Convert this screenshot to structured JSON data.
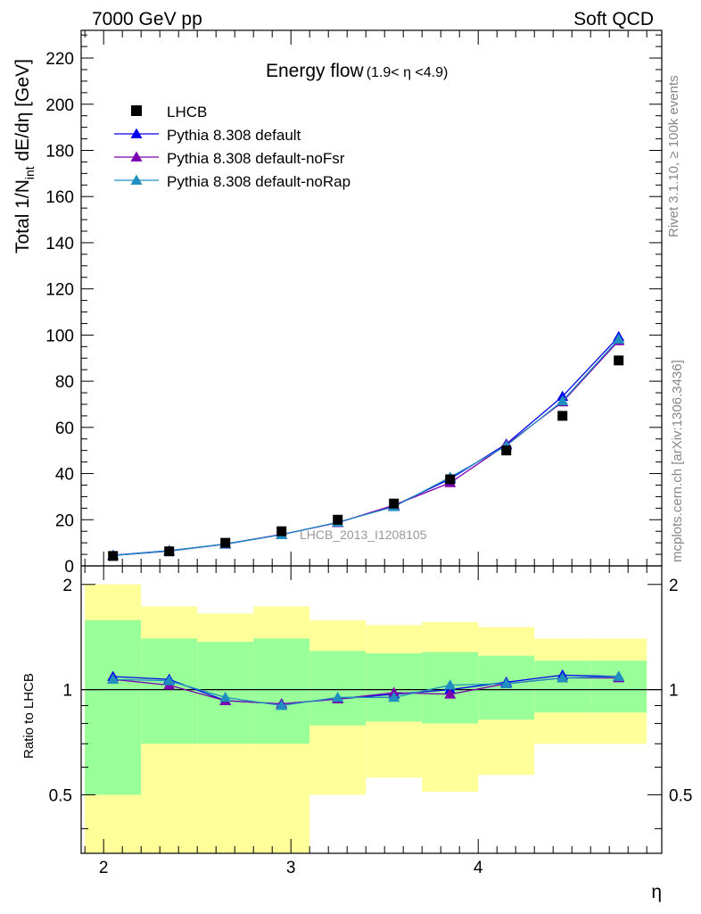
{
  "header": {
    "left": "7000 GeV pp",
    "right": "Soft QCD"
  },
  "side_labels": {
    "rivet": "Rivet 3.1.10, ≥ 100k events",
    "mcplots": "mcplots.cern.ch [arXiv:1306.3436]"
  },
  "chart_data": [
    {
      "type": "scatter",
      "title": "Energy flow",
      "title_suffix": "(1.9< η <4.9)",
      "ylabel": "Total 1/N",
      "ylabel_sub": "int",
      "ylabel_rest": " dE/dη [GeV]",
      "watermark": "LHCB_2013_I1208105",
      "xlim": [
        1.88,
        4.98
      ],
      "ylim": [
        0,
        232
      ],
      "yticks": [
        0,
        20,
        40,
        60,
        80,
        100,
        120,
        140,
        160,
        180,
        200,
        220
      ],
      "ytick_labels": [
        "0",
        "20",
        "40",
        "60",
        "80",
        "100",
        "120",
        "140",
        "160",
        "180",
        "200",
        "220"
      ],
      "legend_position": "top-left",
      "data": {
        "name": "LHCB",
        "color": "#000000",
        "x": [
          2.05,
          2.35,
          2.65,
          2.95,
          3.25,
          3.55,
          3.85,
          4.15,
          4.45,
          4.75
        ],
        "y": [
          4.3,
          6.3,
          10.0,
          15.0,
          20.0,
          27.0,
          37.5,
          50.0,
          65.0,
          89.0
        ],
        "bins": [
          [
            1.9,
            2.2
          ],
          [
            2.2,
            2.5
          ],
          [
            2.5,
            2.8
          ],
          [
            2.8,
            3.1
          ],
          [
            3.1,
            3.4
          ],
          [
            3.4,
            3.7
          ],
          [
            3.7,
            4.0
          ],
          [
            4.0,
            4.3
          ],
          [
            4.3,
            4.6
          ],
          [
            4.6,
            4.9
          ]
        ]
      },
      "series": [
        {
          "name": "Pythia 8.308 default",
          "color": "#0000ee",
          "x": [
            2.05,
            2.35,
            2.65,
            2.95,
            3.25,
            3.55,
            3.85,
            4.15,
            4.45,
            4.75
          ],
          "y": [
            4.6,
            6.6,
            9.4,
            13.6,
            18.8,
            26.0,
            37.7,
            52.8,
            73.4,
            99.3
          ]
        },
        {
          "name": "Pythia 8.308 default-noFsr",
          "color": "#7a00b0",
          "x": [
            2.05,
            2.35,
            2.65,
            2.95,
            3.25,
            3.55,
            3.85,
            4.15,
            4.45,
            4.75
          ],
          "y": [
            4.5,
            6.4,
            9.5,
            13.6,
            18.7,
            26.3,
            36.0,
            52.5,
            71.0,
            97.5
          ]
        },
        {
          "name": "Pythia 8.308 default-noRap",
          "color": "#1f8fbf",
          "x": [
            2.05,
            2.35,
            2.65,
            2.95,
            3.25,
            3.55,
            3.85,
            4.15,
            4.45,
            4.75
          ],
          "y": [
            4.5,
            6.5,
            9.5,
            13.5,
            18.9,
            25.6,
            38.4,
            52.0,
            71.5,
            98.2
          ]
        }
      ]
    },
    {
      "type": "scatter",
      "ylabel": "Ratio to LHCB",
      "xlabel": "η",
      "xlim": [
        1.88,
        4.98
      ],
      "ylim": [
        0.34,
        2.26
      ],
      "y_scale": "log",
      "xticks": [
        2,
        3,
        4
      ],
      "xtick_labels": [
        "2",
        "3",
        "4"
      ],
      "yticks": [
        0.5,
        1,
        2
      ],
      "ytick_labels": [
        "0.5",
        "1",
        "2"
      ],
      "bands": {
        "inner_color": "#99ff99",
        "outer_color": "#ffff99",
        "bins": [
          [
            1.9,
            2.2
          ],
          [
            2.2,
            2.5
          ],
          [
            2.5,
            2.8
          ],
          [
            2.8,
            3.1
          ],
          [
            3.1,
            3.4
          ],
          [
            3.4,
            3.7
          ],
          [
            3.7,
            4.0
          ],
          [
            4.0,
            4.3
          ],
          [
            4.3,
            4.6
          ],
          [
            4.6,
            4.9
          ]
        ],
        "inner_low": [
          0.5,
          0.7,
          0.7,
          0.7,
          0.79,
          0.81,
          0.8,
          0.82,
          0.86,
          0.86
        ],
        "inner_high": [
          1.58,
          1.4,
          1.37,
          1.4,
          1.29,
          1.27,
          1.28,
          1.25,
          1.21,
          1.21
        ],
        "outer_low": [
          0.34,
          0.34,
          0.34,
          0.34,
          0.5,
          0.56,
          0.51,
          0.57,
          0.7,
          0.7
        ],
        "outer_high": [
          2.0,
          1.73,
          1.65,
          1.73,
          1.58,
          1.53,
          1.56,
          1.51,
          1.4,
          1.4
        ]
      },
      "series": [
        {
          "name": "Pythia 8.308 default",
          "color": "#0000ee",
          "x": [
            2.05,
            2.35,
            2.65,
            2.95,
            3.25,
            3.55,
            3.85,
            4.15,
            4.45,
            4.75
          ],
          "y": [
            1.09,
            1.07,
            0.93,
            0.91,
            0.94,
            0.97,
            1.0,
            1.05,
            1.1,
            1.09
          ]
        },
        {
          "name": "Pythia 8.308 default-noFsr",
          "color": "#7a00b0",
          "x": [
            2.05,
            2.35,
            2.65,
            2.95,
            3.25,
            3.55,
            3.85,
            4.15,
            4.45,
            4.75
          ],
          "y": [
            1.07,
            1.03,
            0.93,
            0.91,
            0.94,
            0.98,
            0.97,
            1.04,
            1.08,
            1.08
          ]
        },
        {
          "name": "Pythia 8.308 default-noRap",
          "color": "#1f8fbf",
          "x": [
            2.05,
            2.35,
            2.65,
            2.95,
            3.25,
            3.55,
            3.85,
            4.15,
            4.45,
            4.75
          ],
          "y": [
            1.07,
            1.06,
            0.95,
            0.9,
            0.95,
            0.95,
            1.03,
            1.04,
            1.08,
            1.09
          ]
        }
      ]
    }
  ]
}
